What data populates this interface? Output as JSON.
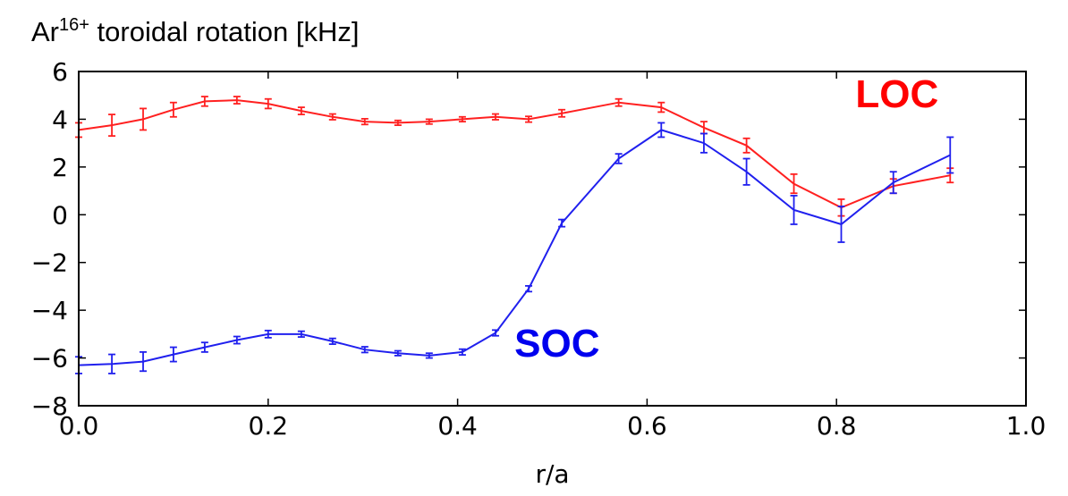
{
  "chart_data": {
    "type": "line",
    "title_base": "Ar",
    "title_sup": "16+",
    "title_rest": " toroidal rotation [kHz]",
    "xlabel": "r/a",
    "ylabel": "",
    "xlim": [
      0.0,
      1.0
    ],
    "ylim": [
      -8,
      6
    ],
    "xticks": [
      0.0,
      0.2,
      0.4,
      0.6,
      0.8,
      1.0
    ],
    "xtick_labels": [
      "0.0",
      "0.2",
      "0.4",
      "0.6",
      "0.8",
      "1.0"
    ],
    "yticks": [
      -8,
      -6,
      -4,
      -2,
      0,
      2,
      4,
      6
    ],
    "ytick_labels": [
      "−8",
      "−6",
      "−4",
      "−2",
      "0",
      "2",
      "4",
      "6"
    ],
    "grid": false,
    "series": [
      {
        "name": "LOC",
        "color": "#ff2020",
        "label_color": "#ff0000",
        "label_at": [
          0.82,
          4.5
        ],
        "x": [
          0.0,
          0.035,
          0.068,
          0.1,
          0.133,
          0.167,
          0.2,
          0.235,
          0.268,
          0.302,
          0.337,
          0.37,
          0.405,
          0.44,
          0.475,
          0.51,
          0.57,
          0.615,
          0.66,
          0.705,
          0.755,
          0.805,
          0.86,
          0.92
        ],
        "y": [
          3.55,
          3.75,
          4.0,
          4.4,
          4.75,
          4.8,
          4.65,
          4.35,
          4.1,
          3.9,
          3.85,
          3.9,
          4.0,
          4.1,
          4.0,
          4.25,
          4.7,
          4.5,
          3.65,
          2.9,
          1.3,
          0.3,
          1.2,
          1.65
        ],
        "err": [
          0.3,
          0.45,
          0.45,
          0.3,
          0.2,
          0.15,
          0.2,
          0.15,
          0.12,
          0.12,
          0.1,
          0.1,
          0.1,
          0.12,
          0.12,
          0.15,
          0.15,
          0.2,
          0.25,
          0.3,
          0.4,
          0.35,
          0.3,
          0.3
        ]
      },
      {
        "name": "SOC",
        "color": "#2020ee",
        "label_color": "#0000ee",
        "label_at": [
          0.46,
          -5.95
        ],
        "x": [
          0.0,
          0.035,
          0.068,
          0.1,
          0.133,
          0.167,
          0.2,
          0.235,
          0.268,
          0.302,
          0.337,
          0.37,
          0.405,
          0.44,
          0.475,
          0.51,
          0.57,
          0.615,
          0.66,
          0.705,
          0.755,
          0.805,
          0.86,
          0.92
        ],
        "y": [
          -6.3,
          -6.25,
          -6.15,
          -5.85,
          -5.55,
          -5.25,
          -5.0,
          -5.0,
          -5.3,
          -5.65,
          -5.8,
          -5.9,
          -5.75,
          -4.95,
          -3.1,
          -0.35,
          2.35,
          3.55,
          3.0,
          1.8,
          0.2,
          -0.4,
          1.35,
          2.5
        ],
        "err": [
          0.35,
          0.4,
          0.4,
          0.3,
          0.2,
          0.15,
          0.15,
          0.12,
          0.12,
          0.12,
          0.1,
          0.1,
          0.12,
          0.12,
          0.12,
          0.15,
          0.2,
          0.3,
          0.4,
          0.55,
          0.6,
          0.75,
          0.45,
          0.75
        ]
      }
    ]
  }
}
